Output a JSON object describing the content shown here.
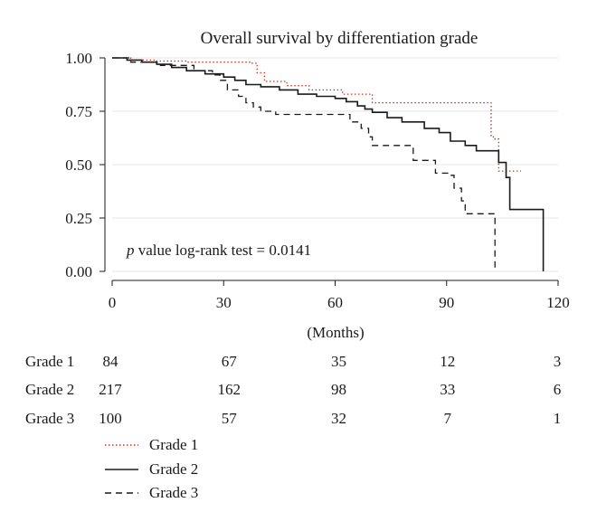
{
  "chart_data": {
    "type": "line",
    "step": true,
    "title": "Overall survival by differentiation grade",
    "xlabel": "(Months)",
    "ylabel": "",
    "xlim": [
      0,
      120
    ],
    "ylim": [
      0,
      1
    ],
    "xticks": [
      0,
      30,
      60,
      90,
      120
    ],
    "xtick_labels": [
      "0",
      "30",
      "60",
      "90",
      "120"
    ],
    "yticks": [
      0,
      0.25,
      0.5,
      0.75,
      1
    ],
    "ytick_labels": [
      "0.00",
      "0.25",
      "0.50",
      "0.75",
      "1.00"
    ],
    "grid": true,
    "annotation": {
      "italic_prefix": "p",
      "text": " value log-rank test = 0.0141"
    },
    "series": [
      {
        "name": "Grade 1",
        "style": "dotted",
        "color": "#c0392b",
        "points": [
          [
            0,
            1.0
          ],
          [
            5,
            0.99
          ],
          [
            12,
            0.985
          ],
          [
            20,
            0.98
          ],
          [
            37,
            0.975
          ],
          [
            39,
            0.93
          ],
          [
            41,
            0.89
          ],
          [
            47,
            0.87
          ],
          [
            53,
            0.85
          ],
          [
            62,
            0.83
          ],
          [
            70,
            0.79
          ],
          [
            84,
            0.79
          ],
          [
            100,
            0.79
          ],
          [
            102,
            0.63
          ],
          [
            103,
            0.62
          ],
          [
            104,
            0.47
          ],
          [
            110,
            0.47
          ]
        ]
      },
      {
        "name": "Grade 2",
        "style": "solid",
        "color": "#1a1a1a",
        "points": [
          [
            0,
            1.0
          ],
          [
            4,
            0.99
          ],
          [
            8,
            0.98
          ],
          [
            12,
            0.97
          ],
          [
            16,
            0.955
          ],
          [
            20,
            0.94
          ],
          [
            25,
            0.925
          ],
          [
            30,
            0.91
          ],
          [
            33,
            0.895
          ],
          [
            36,
            0.875
          ],
          [
            40,
            0.865
          ],
          [
            45,
            0.85
          ],
          [
            50,
            0.83
          ],
          [
            55,
            0.82
          ],
          [
            60,
            0.81
          ],
          [
            63,
            0.795
          ],
          [
            66,
            0.775
          ],
          [
            68,
            0.76
          ],
          [
            70,
            0.745
          ],
          [
            74,
            0.72
          ],
          [
            78,
            0.7
          ],
          [
            84,
            0.67
          ],
          [
            88,
            0.65
          ],
          [
            91,
            0.61
          ],
          [
            95,
            0.59
          ],
          [
            98,
            0.565
          ],
          [
            103,
            0.565
          ],
          [
            104,
            0.51
          ],
          [
            105,
            0.51
          ],
          [
            106,
            0.44
          ],
          [
            107,
            0.29
          ],
          [
            116,
            0.29
          ],
          [
            116,
            0.0
          ]
        ]
      },
      {
        "name": "Grade 3",
        "style": "dashed",
        "color": "#1a1a1a",
        "points": [
          [
            0,
            1.0
          ],
          [
            5,
            0.98
          ],
          [
            13,
            0.965
          ],
          [
            22,
            0.94
          ],
          [
            27,
            0.92
          ],
          [
            29,
            0.895
          ],
          [
            31,
            0.85
          ],
          [
            34,
            0.82
          ],
          [
            36,
            0.79
          ],
          [
            38,
            0.77
          ],
          [
            40,
            0.75
          ],
          [
            44,
            0.735
          ],
          [
            59,
            0.735
          ],
          [
            64,
            0.7
          ],
          [
            67,
            0.67
          ],
          [
            69,
            0.63
          ],
          [
            70,
            0.59
          ],
          [
            80,
            0.59
          ],
          [
            81,
            0.52
          ],
          [
            86,
            0.52
          ],
          [
            87,
            0.46
          ],
          [
            91,
            0.45
          ],
          [
            92,
            0.39
          ],
          [
            94,
            0.33
          ],
          [
            95,
            0.27
          ],
          [
            103,
            0.27
          ],
          [
            103,
            0.0
          ]
        ]
      }
    ],
    "risk_table": {
      "x": [
        0,
        30,
        60,
        90,
        120
      ],
      "rows": [
        {
          "label": "Grade 1",
          "values": [
            "84",
            "67",
            "35",
            "12",
            "3"
          ]
        },
        {
          "label": "Grade 2",
          "values": [
            "217",
            "162",
            "98",
            "33",
            "6"
          ]
        },
        {
          "label": "Grade 3",
          "values": [
            "100",
            "57",
            "32",
            "7",
            "1"
          ]
        }
      ]
    },
    "legend": {
      "placement": "bottom-left",
      "entries": [
        {
          "label": "Grade 1",
          "style": "dotted",
          "color": "#c0392b"
        },
        {
          "label": "Grade 2",
          "style": "solid",
          "color": "#1a1a1a"
        },
        {
          "label": "Grade 3",
          "style": "dashed",
          "color": "#1a1a1a"
        }
      ]
    }
  }
}
